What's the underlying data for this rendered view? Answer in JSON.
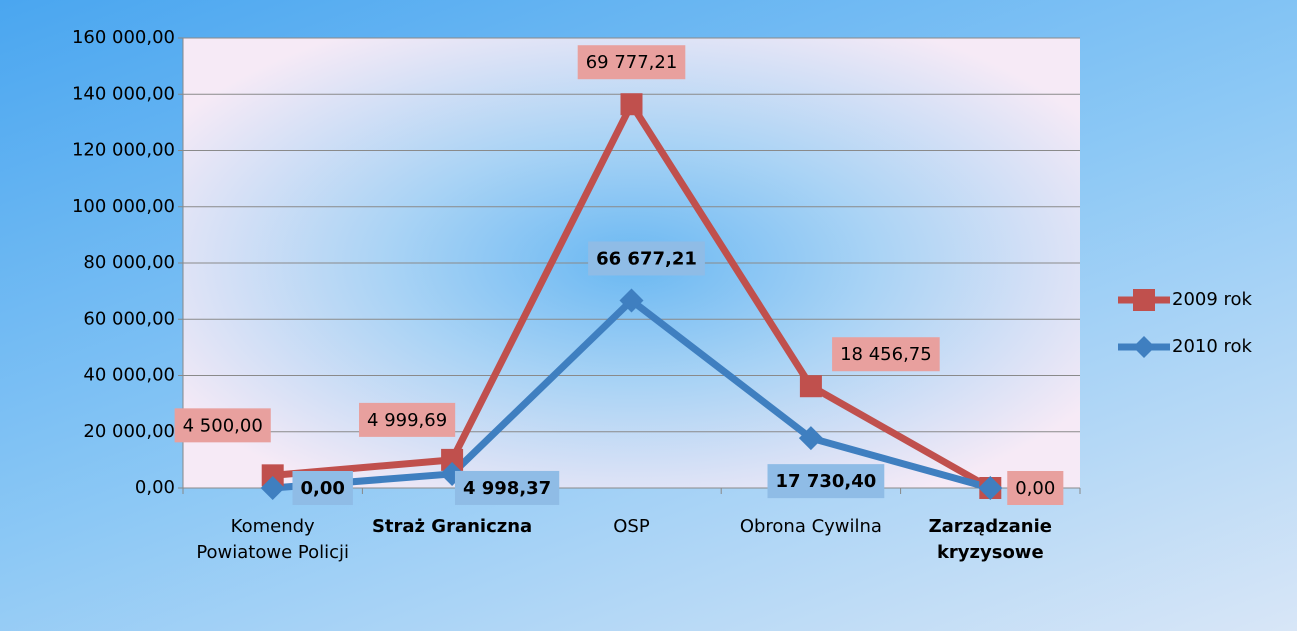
{
  "chart_data": {
    "type": "line",
    "stacked": true,
    "categories": [
      "Komendy Powiatowe Policji",
      "Straż Graniczna",
      "OSP",
      "Obrona Cywilna",
      "Zarządzanie kryzysowe"
    ],
    "series": [
      {
        "name": "2009 rok",
        "color": "#c0504d",
        "values": [
          4500.0,
          4999.69,
          69777.21,
          18456.75,
          0.0
        ],
        "value_labels": [
          "4 500,00",
          "4 999,69",
          "69 777,21",
          "18 456,75",
          "0,00"
        ]
      },
      {
        "name": "2010 rok",
        "color": "#3f7fc0",
        "values": [
          0.0,
          4998.37,
          66677.21,
          17730.4,
          0.0
        ],
        "value_labels": [
          "0,00",
          "4 998,37",
          "66 677,21",
          "17 730,40",
          null
        ]
      }
    ],
    "ylim": [
      0,
      160000
    ],
    "yticks": [
      {
        "value": 0,
        "label": "0,00"
      },
      {
        "value": 20000,
        "label": "20 000,00"
      },
      {
        "value": 40000,
        "label": "40 000,00"
      },
      {
        "value": 60000,
        "label": "60 000,00"
      },
      {
        "value": 80000,
        "label": "80 000,00"
      },
      {
        "value": 100000,
        "label": "100 000,00"
      },
      {
        "value": 120000,
        "label": "120 000,00"
      },
      {
        "value": 140000,
        "label": "140 000,00"
      },
      {
        "value": 160000,
        "label": "160 000,00"
      }
    ],
    "grid": true,
    "legend": "right"
  }
}
